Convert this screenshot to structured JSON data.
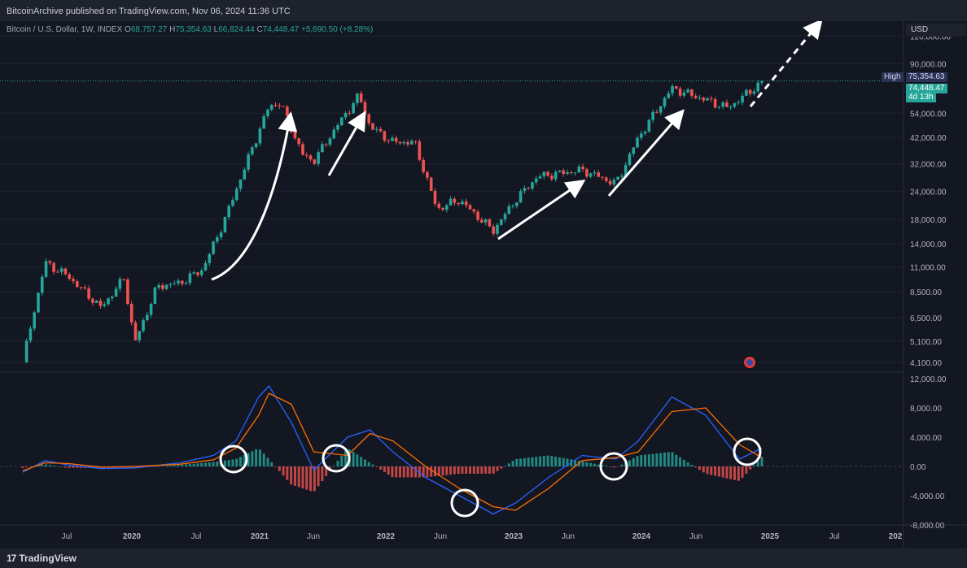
{
  "header": {
    "published": "BitcoinArchive published on TradingView.com, Nov 06, 2024 11:36 UTC"
  },
  "legend": {
    "symbol": "Bitcoin / U.S. Dollar, 1W, INDEX",
    "o_label": "O",
    "o": "68,757.27",
    "h_label": "H",
    "h": "75,354.63",
    "l_label": "L",
    "l": "66,824.44",
    "c_label": "C",
    "c": "74,448.47",
    "change": "+5,690.50 (+8.28%)"
  },
  "price_axis": {
    "currency": "USD",
    "ticks": [
      "120,000.00",
      "90,000.00",
      "54,000.00",
      "42,000.00",
      "32,000.00",
      "24,000.00",
      "18,000.00",
      "14,000.00",
      "11,000.00",
      "8,500.00",
      "6,500.00",
      "5,100.00",
      "4,100.00"
    ],
    "high_label": "High",
    "high_value": "75,354.63",
    "last_value": "74,448.47",
    "countdown": "4d 13h"
  },
  "macd_axis": {
    "ticks": [
      "12,000.00",
      "8,000.00",
      "4,000.00",
      "0.00",
      "-4,000.00",
      "-8,000.00"
    ]
  },
  "time_axis": {
    "labels": [
      "Jul",
      "2020",
      "Jul",
      "2021",
      "Jun",
      "2022",
      "Jun",
      "2023",
      "Jun",
      "2024",
      "Jun",
      "2025",
      "Jul",
      "202"
    ]
  },
  "branding": {
    "logo": "17",
    "name": "TradingView"
  },
  "colors": {
    "up": "#26a69a",
    "down": "#ef5350",
    "background": "#131722",
    "macd_line": "#2962ff",
    "signal_line": "#ff6d00",
    "annotation": "#ffffff"
  },
  "chart_data": [
    {
      "type": "candlestick",
      "title": "Bitcoin / U.S. Dollar, 1W, INDEX",
      "scale": "log",
      "ylim": [
        3700,
        140000
      ],
      "x": [
        "2019-05",
        "2019-07",
        "2019-09",
        "2019-12",
        "2020-02",
        "2020-03",
        "2020-05",
        "2020-07",
        "2020-09",
        "2020-11",
        "2021-01",
        "2021-03",
        "2021-04",
        "2021-06",
        "2021-07",
        "2021-09",
        "2021-11",
        "2021-12",
        "2022-02",
        "2022-04",
        "2022-06",
        "2022-08",
        "2022-11",
        "2023-01",
        "2023-03",
        "2023-07",
        "2023-10",
        "2023-12",
        "2024-03",
        "2024-06",
        "2024-08",
        "2024-11"
      ],
      "close": [
        4100,
        11500,
        10000,
        7200,
        9800,
        5000,
        9000,
        9300,
        10700,
        18000,
        33000,
        58000,
        60000,
        35000,
        33000,
        47000,
        65000,
        47000,
        40000,
        40000,
        20000,
        22000,
        16000,
        22000,
        28000,
        30000,
        26000,
        42000,
        70000,
        62000,
        57000,
        74448
      ]
    },
    {
      "type": "line",
      "title": "MACD",
      "ylim": [
        -8000,
        12000
      ],
      "x": [
        "2019-05",
        "2019-07",
        "2019-09",
        "2019-12",
        "2020-03",
        "2020-07",
        "2020-10",
        "2020-12",
        "2021-02",
        "2021-03",
        "2021-05",
        "2021-07",
        "2021-10",
        "2021-12",
        "2022-02",
        "2022-05",
        "2022-08",
        "2022-11",
        "2023-01",
        "2023-04",
        "2023-07",
        "2023-10",
        "2023-12",
        "2024-03",
        "2024-06",
        "2024-09",
        "2024-11"
      ],
      "series": [
        {
          "values": [
            -800,
            800,
            200,
            -300,
            -200,
            500,
            1500,
            3500,
            9500,
            11000,
            6000,
            -500,
            4000,
            5000,
            2000,
            -1500,
            -4000,
            -6500,
            -5000,
            -1500,
            1500,
            1000,
            3500,
            9500,
            7000,
            1000,
            2500
          ]
        },
        {
          "values": [
            -600,
            500,
            400,
            -100,
            0,
            300,
            900,
            2500,
            7000,
            10000,
            8500,
            2000,
            1500,
            4500,
            3500,
            0,
            -3000,
            -5500,
            -6000,
            -3000,
            800,
            1200,
            2000,
            7500,
            8000,
            3000,
            1200
          ]
        }
      ],
      "histogram": [
        -200,
        300,
        -200,
        -200,
        -200,
        200,
        600,
        1000,
        2500,
        1000,
        -2500,
        -3500,
        2500,
        500,
        -1500,
        -1500,
        -1000,
        -1000,
        1000,
        1500,
        700,
        -200,
        1500,
        2000,
        -1000,
        -2000,
        1300
      ]
    }
  ]
}
